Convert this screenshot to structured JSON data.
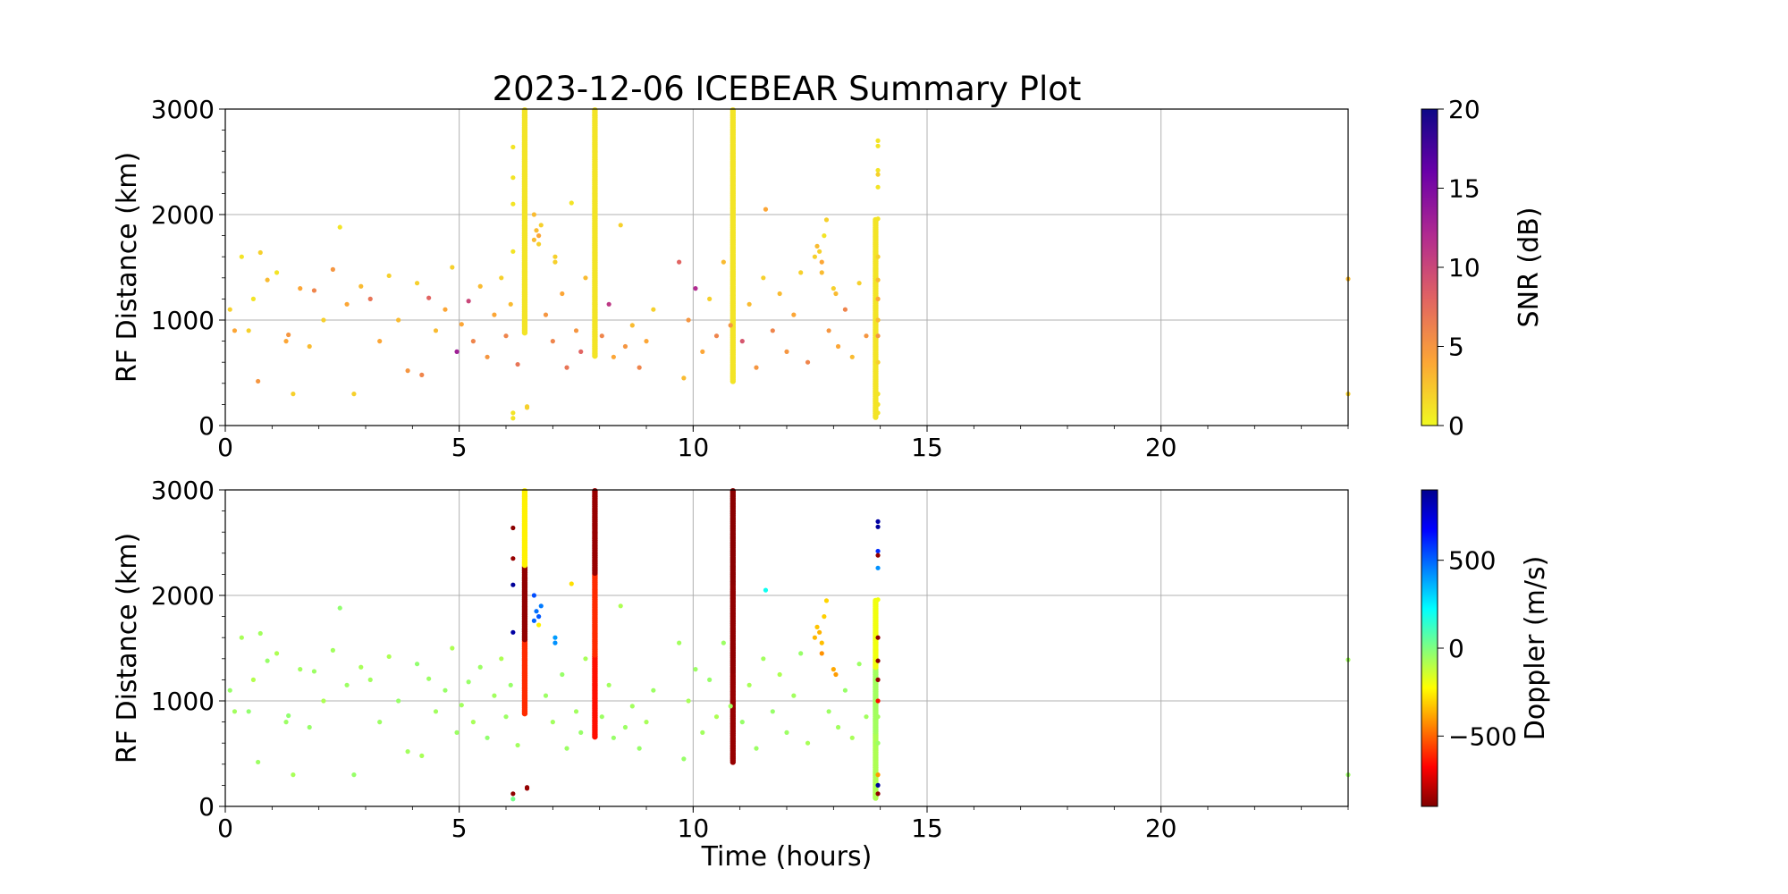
{
  "chart_data": [
    {
      "type": "scatter",
      "title": "2023-12-06 ICEBEAR Summary Plot",
      "xlabel": "",
      "ylabel": "RF Distance (km)",
      "xlim": [
        0,
        24
      ],
      "ylim": [
        0,
        3000
      ],
      "xticks": [
        "0",
        "5",
        "10",
        "15",
        "20"
      ],
      "yticks": [
        "0",
        "1000",
        "2000",
        "3000"
      ],
      "grid": true,
      "color_variable": "snr",
      "colorbar": {
        "label": "SNR (dB)",
        "range": [
          0,
          20
        ],
        "ticks": [
          "0",
          "5",
          "10",
          "15",
          "20"
        ],
        "colormap": "plasma_r",
        "stops": [
          "#f0f921",
          "#fca636",
          "#e16462",
          "#b12a90",
          "#6a00a8",
          "#0d0887"
        ]
      },
      "point_color_range": [
        0,
        20
      ]
    },
    {
      "type": "scatter",
      "title": "",
      "xlabel": "Time (hours)",
      "ylabel": "RF Distance (km)",
      "xlim": [
        0,
        24
      ],
      "ylim": [
        0,
        3000
      ],
      "xticks": [
        "0",
        "5",
        "10",
        "15",
        "20"
      ],
      "yticks": [
        "0",
        "1000",
        "2000",
        "3000"
      ],
      "grid": true,
      "color_variable": "doppler",
      "colorbar": {
        "label": "Doppler (m/s)",
        "range": [
          -900,
          900
        ],
        "ticks": [
          "−500",
          "0",
          "500"
        ],
        "tick_values": [
          -500,
          0,
          500
        ],
        "colormap": "jet_r",
        "stops": [
          "#800000",
          "#ff0000",
          "#ff8000",
          "#ffff00",
          "#80ff80",
          "#00ffff",
          "#0080ff",
          "#0000ff",
          "#00008f"
        ]
      },
      "point_color_range": [
        -900,
        900
      ]
    }
  ],
  "points": [
    {
      "t": 0.1,
      "r": 1100,
      "snr": 2,
      "doppler": -40
    },
    {
      "t": 0.2,
      "r": 900,
      "snr": 4,
      "doppler": -60
    },
    {
      "t": 0.35,
      "r": 1600,
      "snr": 1,
      "doppler": -70
    },
    {
      "t": 0.5,
      "r": 900,
      "snr": 2,
      "doppler": -30
    },
    {
      "t": 0.6,
      "r": 1200,
      "snr": 1,
      "doppler": -90
    },
    {
      "t": 0.7,
      "r": 420,
      "snr": 5,
      "doppler": -50
    },
    {
      "t": 0.75,
      "r": 1640,
      "snr": 2,
      "doppler": -60
    },
    {
      "t": 0.9,
      "r": 1380,
      "snr": 3,
      "doppler": -40
    },
    {
      "t": 1.1,
      "r": 1450,
      "snr": 1,
      "doppler": -80
    },
    {
      "t": 1.3,
      "r": 800,
      "snr": 4,
      "doppler": -50
    },
    {
      "t": 1.35,
      "r": 860,
      "snr": 5,
      "doppler": -30
    },
    {
      "t": 1.45,
      "r": 300,
      "snr": 2,
      "doppler": -70
    },
    {
      "t": 1.6,
      "r": 1300,
      "snr": 4,
      "doppler": -60
    },
    {
      "t": 1.8,
      "r": 750,
      "snr": 3,
      "doppler": -40
    },
    {
      "t": 1.9,
      "r": 1280,
      "snr": 6,
      "doppler": -50
    },
    {
      "t": 2.1,
      "r": 1000,
      "snr": 2,
      "doppler": -80
    },
    {
      "t": 2.3,
      "r": 1480,
      "snr": 5,
      "doppler": -60
    },
    {
      "t": 2.45,
      "r": 1880,
      "snr": 1,
      "doppler": -30
    },
    {
      "t": 2.6,
      "r": 1150,
      "snr": 4,
      "doppler": -50
    },
    {
      "t": 2.75,
      "r": 300,
      "snr": 2,
      "doppler": -40
    },
    {
      "t": 2.9,
      "r": 1320,
      "snr": 3,
      "doppler": -70
    },
    {
      "t": 3.1,
      "r": 1200,
      "snr": 7,
      "doppler": -60
    },
    {
      "t": 3.3,
      "r": 800,
      "snr": 4,
      "doppler": -50
    },
    {
      "t": 3.5,
      "r": 1420,
      "snr": 2,
      "doppler": -80
    },
    {
      "t": 3.7,
      "r": 1000,
      "snr": 3,
      "doppler": -40
    },
    {
      "t": 3.9,
      "r": 520,
      "snr": 5,
      "doppler": -60
    },
    {
      "t": 4.1,
      "r": 1350,
      "snr": 2,
      "doppler": -30
    },
    {
      "t": 4.2,
      "r": 480,
      "snr": 6,
      "doppler": -70
    },
    {
      "t": 4.35,
      "r": 1210,
      "snr": 8,
      "doppler": -50
    },
    {
      "t": 4.5,
      "r": 900,
      "snr": 3,
      "doppler": -60
    },
    {
      "t": 4.7,
      "r": 1100,
      "snr": 4,
      "doppler": -40
    },
    {
      "t": 4.85,
      "r": 1500,
      "snr": 2,
      "doppler": -80
    },
    {
      "t": 4.95,
      "r": 700,
      "snr": 13,
      "doppler": -50
    },
    {
      "t": 5.05,
      "r": 960,
      "snr": 4,
      "doppler": -60
    },
    {
      "t": 5.2,
      "r": 1180,
      "snr": 10,
      "doppler": -40
    },
    {
      "t": 5.3,
      "r": 800,
      "snr": 6,
      "doppler": -70
    },
    {
      "t": 5.45,
      "r": 1320,
      "snr": 3,
      "doppler": -50
    },
    {
      "t": 5.6,
      "r": 650,
      "snr": 5,
      "doppler": -30
    },
    {
      "t": 5.75,
      "r": 1050,
      "snr": 4,
      "doppler": -60
    },
    {
      "t": 5.9,
      "r": 1400,
      "snr": 2,
      "doppler": -80
    },
    {
      "t": 6.0,
      "r": 850,
      "snr": 6,
      "doppler": -50
    },
    {
      "t": 6.1,
      "r": 1150,
      "snr": 3,
      "doppler": -40
    },
    {
      "t": 6.15,
      "r": 2640,
      "snr": 1,
      "doppler": -880
    },
    {
      "t": 6.15,
      "r": 2350,
      "snr": 1,
      "doppler": -860
    },
    {
      "t": 6.15,
      "r": 2100,
      "snr": 1,
      "doppler": 880
    },
    {
      "t": 6.15,
      "r": 1650,
      "snr": 1,
      "doppler": 860
    },
    {
      "t": 6.15,
      "r": 120,
      "snr": 1,
      "doppler": -870
    },
    {
      "t": 6.15,
      "r": 70,
      "snr": 1,
      "doppler": 20
    },
    {
      "t": 6.25,
      "r": 580,
      "snr": 7,
      "doppler": -60
    },
    {
      "t": 6.45,
      "r": 180,
      "snr": 2,
      "doppler": -880
    },
    {
      "t": 6.45,
      "r": 170,
      "snr": 2,
      "doppler": -860
    },
    {
      "t": 6.6,
      "r": 1760,
      "snr": 3,
      "doppler": 500
    },
    {
      "t": 6.65,
      "r": 1850,
      "snr": 3,
      "doppler": 480
    },
    {
      "t": 6.7,
      "r": 1800,
      "snr": 4,
      "doppler": 520
    },
    {
      "t": 6.75,
      "r": 1900,
      "snr": 2,
      "doppler": 460
    },
    {
      "t": 6.6,
      "r": 2000,
      "snr": 3,
      "doppler": 540
    },
    {
      "t": 6.7,
      "r": 1720,
      "snr": 2,
      "doppler": -250
    },
    {
      "t": 6.85,
      "r": 1050,
      "snr": 5,
      "doppler": -50
    },
    {
      "t": 7.0,
      "r": 800,
      "snr": 6,
      "doppler": -60
    },
    {
      "t": 7.05,
      "r": 1550,
      "snr": 2,
      "doppler": 420
    },
    {
      "t": 7.05,
      "r": 1600,
      "snr": 2,
      "doppler": 400
    },
    {
      "t": 7.2,
      "r": 1250,
      "snr": 4,
      "doppler": -40
    },
    {
      "t": 7.3,
      "r": 550,
      "snr": 7,
      "doppler": -50
    },
    {
      "t": 7.4,
      "r": 2110,
      "snr": 1,
      "doppler": -280
    },
    {
      "t": 7.5,
      "r": 900,
      "snr": 5,
      "doppler": -60
    },
    {
      "t": 7.6,
      "r": 700,
      "snr": 8,
      "doppler": -40
    },
    {
      "t": 7.7,
      "r": 1400,
      "snr": 3,
      "doppler": -70
    },
    {
      "t": 8.05,
      "r": 850,
      "snr": 6,
      "doppler": -50
    },
    {
      "t": 8.2,
      "r": 1150,
      "snr": 11,
      "doppler": -60
    },
    {
      "t": 8.3,
      "r": 650,
      "snr": 4,
      "doppler": -40
    },
    {
      "t": 8.45,
      "r": 1900,
      "snr": 2,
      "doppler": -80
    },
    {
      "t": 8.55,
      "r": 750,
      "snr": 5,
      "doppler": -50
    },
    {
      "t": 8.7,
      "r": 950,
      "snr": 3,
      "doppler": -60
    },
    {
      "t": 8.85,
      "r": 550,
      "snr": 6,
      "doppler": -40
    },
    {
      "t": 9.0,
      "r": 800,
      "snr": 4,
      "doppler": -70
    },
    {
      "t": 9.15,
      "r": 1100,
      "snr": 2,
      "doppler": -50
    },
    {
      "t": 9.7,
      "r": 1550,
      "snr": 8,
      "doppler": -60
    },
    {
      "t": 9.8,
      "r": 450,
      "snr": 3,
      "doppler": -40
    },
    {
      "t": 9.9,
      "r": 1000,
      "snr": 5,
      "doppler": -70
    },
    {
      "t": 10.05,
      "r": 1300,
      "snr": 12,
      "doppler": -50
    },
    {
      "t": 10.2,
      "r": 700,
      "snr": 4,
      "doppler": -60
    },
    {
      "t": 10.35,
      "r": 1200,
      "snr": 2,
      "doppler": -40
    },
    {
      "t": 10.5,
      "r": 850,
      "snr": 6,
      "doppler": -80
    },
    {
      "t": 10.65,
      "r": 1550,
      "snr": 3,
      "doppler": -50
    },
    {
      "t": 10.8,
      "r": 950,
      "snr": 5,
      "doppler": -60
    },
    {
      "t": 11.05,
      "r": 800,
      "snr": 9,
      "doppler": -40
    },
    {
      "t": 11.2,
      "r": 1150,
      "snr": 3,
      "doppler": -70
    },
    {
      "t": 11.35,
      "r": 550,
      "snr": 5,
      "doppler": -50
    },
    {
      "t": 11.5,
      "r": 1400,
      "snr": 2,
      "doppler": -60
    },
    {
      "t": 11.55,
      "r": 2050,
      "snr": 4,
      "doppler": 200
    },
    {
      "t": 11.7,
      "r": 900,
      "snr": 6,
      "doppler": -40
    },
    {
      "t": 11.85,
      "r": 1250,
      "snr": 3,
      "doppler": -80
    },
    {
      "t": 12.0,
      "r": 700,
      "snr": 5,
      "doppler": -50
    },
    {
      "t": 12.15,
      "r": 1050,
      "snr": 4,
      "doppler": -60
    },
    {
      "t": 12.3,
      "r": 1450,
      "snr": 2,
      "doppler": -40
    },
    {
      "t": 12.45,
      "r": 600,
      "snr": 6,
      "doppler": -70
    },
    {
      "t": 12.6,
      "r": 1600,
      "snr": 2,
      "doppler": -350
    },
    {
      "t": 12.65,
      "r": 1700,
      "snr": 3,
      "doppler": -330
    },
    {
      "t": 12.7,
      "r": 1650,
      "snr": 2,
      "doppler": -360
    },
    {
      "t": 12.75,
      "r": 1550,
      "snr": 4,
      "doppler": -340
    },
    {
      "t": 12.8,
      "r": 1800,
      "snr": 1,
      "doppler": -310
    },
    {
      "t": 12.85,
      "r": 1950,
      "snr": 2,
      "doppler": -300
    },
    {
      "t": 12.75,
      "r": 1450,
      "snr": 3,
      "doppler": -420
    },
    {
      "t": 13.0,
      "r": 1300,
      "snr": 2,
      "doppler": -380
    },
    {
      "t": 13.05,
      "r": 1250,
      "snr": 3,
      "doppler": -400
    },
    {
      "t": 12.9,
      "r": 900,
      "snr": 5,
      "doppler": -50
    },
    {
      "t": 13.1,
      "r": 750,
      "snr": 4,
      "doppler": -60
    },
    {
      "t": 13.25,
      "r": 1100,
      "snr": 6,
      "doppler": -40
    },
    {
      "t": 13.4,
      "r": 650,
      "snr": 3,
      "doppler": -70
    },
    {
      "t": 13.55,
      "r": 1350,
      "snr": 2,
      "doppler": -50
    },
    {
      "t": 13.7,
      "r": 850,
      "snr": 5,
      "doppler": -60
    },
    {
      "t": 13.95,
      "r": 2700,
      "snr": 1,
      "doppler": 860
    },
    {
      "t": 13.95,
      "r": 2650,
      "snr": 1,
      "doppler": 880
    },
    {
      "t": 13.95,
      "r": 2420,
      "snr": 1,
      "doppler": 600
    },
    {
      "t": 13.95,
      "r": 2380,
      "snr": 2,
      "doppler": -870
    },
    {
      "t": 13.95,
      "r": 2260,
      "snr": 1,
      "doppler": 420
    },
    {
      "t": 13.95,
      "r": 1960,
      "snr": 1,
      "doppler": -200
    },
    {
      "t": 13.95,
      "r": 1600,
      "snr": 2,
      "doppler": -870
    },
    {
      "t": 13.95,
      "r": 1380,
      "snr": 3,
      "doppler": -880
    },
    {
      "t": 13.95,
      "r": 1200,
      "snr": 4,
      "doppler": -860
    },
    {
      "t": 13.95,
      "r": 1000,
      "snr": 3,
      "doppler": -650
    },
    {
      "t": 13.95,
      "r": 850,
      "snr": 5,
      "doppler": -60
    },
    {
      "t": 13.95,
      "r": 600,
      "snr": 2,
      "doppler": -50
    },
    {
      "t": 13.95,
      "r": 300,
      "snr": 1,
      "doppler": -400
    },
    {
      "t": 13.95,
      "r": 200,
      "snr": 1,
      "doppler": 880
    },
    {
      "t": 13.95,
      "r": 120,
      "snr": 1,
      "doppler": -870
    },
    {
      "t": 24.0,
      "r": 1390,
      "snr": 3,
      "doppler": -60
    },
    {
      "t": 24.0,
      "r": 300,
      "snr": 2,
      "doppler": -50
    }
  ],
  "streaks": [
    {
      "t": 6.4,
      "r_start": 880,
      "r_end": 2990,
      "snr": 1,
      "doppler_top": -250,
      "doppler_mid": -870,
      "doppler_low": -600
    },
    {
      "t": 7.9,
      "r_start": 660,
      "r_end": 2990,
      "snr": 1,
      "doppler_top": -860,
      "doppler_mid": -600,
      "doppler_low": -650
    },
    {
      "t": 10.85,
      "r_start": 420,
      "r_end": 2990,
      "snr": 1,
      "doppler_top": -880,
      "doppler_mid": -870,
      "doppler_low": -860
    },
    {
      "t": 13.9,
      "r_start": 80,
      "r_end": 1950,
      "snr": 1,
      "doppler_top": -200,
      "doppler_mid": -60,
      "doppler_low": -80
    }
  ]
}
